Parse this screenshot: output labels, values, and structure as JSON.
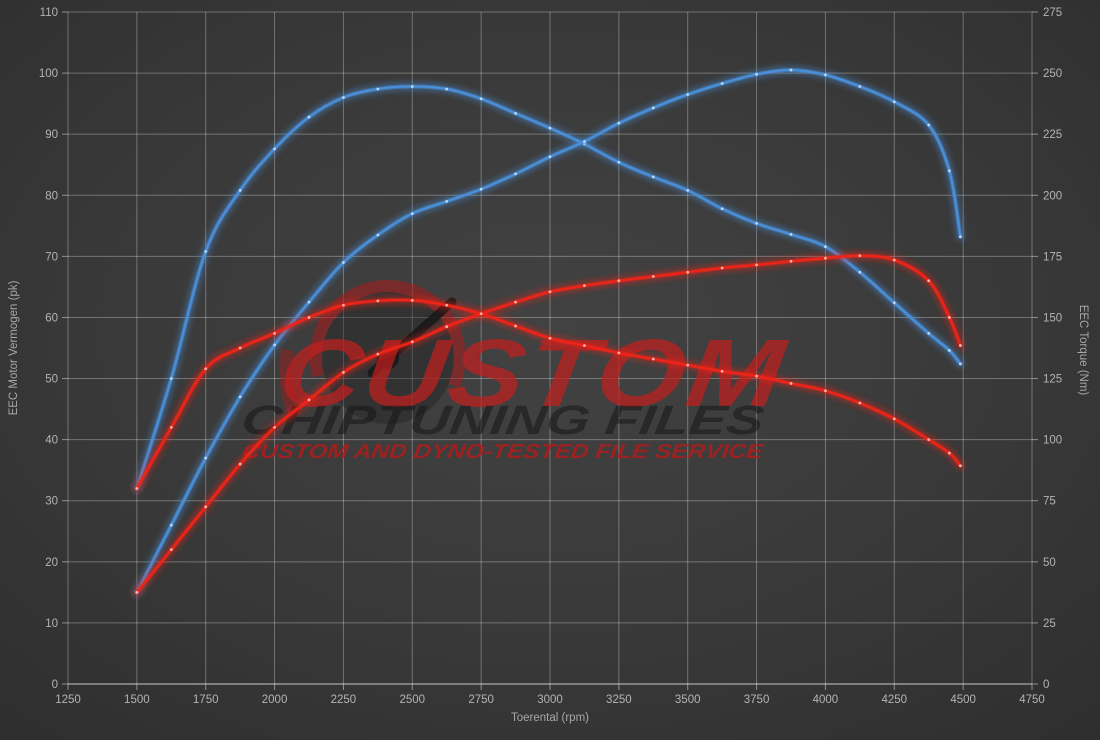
{
  "chart_data": {
    "type": "line",
    "title": "",
    "xlabel": "Toerental (rpm)",
    "ylabel_left": "EEC Motor Vermogen (pk)",
    "ylabel_right": "EEC Torque (Nm)",
    "x_range": [
      1250,
      4750
    ],
    "x_ticks": [
      1250,
      1500,
      1750,
      2000,
      2250,
      2500,
      2750,
      3000,
      3250,
      3500,
      3750,
      4000,
      4250,
      4500,
      4750
    ],
    "y_left": {
      "min": 0,
      "max": 110,
      "step": 10,
      "ticks": [
        0,
        10,
        20,
        30,
        40,
        50,
        60,
        70,
        80,
        90,
        100,
        110
      ]
    },
    "y_right": {
      "min": 0,
      "max": 275,
      "step": 25,
      "ticks": [
        0,
        25,
        50,
        75,
        100,
        125,
        150,
        175,
        200,
        225,
        250,
        275
      ]
    },
    "grid": true,
    "legend": "none",
    "x": [
      1500,
      1625,
      1750,
      1875,
      2000,
      2125,
      2250,
      2375,
      2500,
      2625,
      2750,
      2875,
      3000,
      3125,
      3250,
      3375,
      3500,
      3625,
      3750,
      3875,
      4000,
      4125,
      4250,
      4375,
      4450,
      4490
    ],
    "series": [
      {
        "name": "blue-torque",
        "axis": "right",
        "color": "#4a8fd9",
        "dot_color": "#d9e9ff",
        "values": [
          80,
          125,
          177,
          202,
          219,
          232,
          240,
          243.5,
          244.5,
          243.5,
          239.5,
          233.5,
          227.5,
          221,
          213.5,
          207.5,
          202,
          194.5,
          188.5,
          184,
          179,
          168.5,
          156,
          143.5,
          136.5,
          131
        ]
      },
      {
        "name": "blue-power",
        "axis": "left",
        "color": "#4a8fd9",
        "dot_color": "#d9e9ff",
        "values": [
          15,
          26,
          37,
          47,
          55.5,
          62.5,
          69,
          73.5,
          77,
          79,
          81,
          83.5,
          86.3,
          88.8,
          91.8,
          94.3,
          96.5,
          98.3,
          99.8,
          100.5,
          99.7,
          97.8,
          95.3,
          91.5,
          84,
          73.2
        ]
      },
      {
        "name": "red-torque",
        "axis": "right",
        "color": "#ef2418",
        "dot_color": "#ffd4ce",
        "values": [
          80,
          105,
          129,
          137.5,
          143.5,
          150,
          155,
          156.8,
          157,
          155,
          151.5,
          146.5,
          141.5,
          138.5,
          135.5,
          133,
          130.5,
          128,
          126,
          123,
          120,
          115,
          108.5,
          100,
          94.5,
          89.3
        ]
      },
      {
        "name": "red-power",
        "axis": "left",
        "color": "#ef2418",
        "dot_color": "#ffd4ce",
        "values": [
          15,
          22,
          29,
          36,
          42,
          46.5,
          51,
          54,
          56,
          58.5,
          60.6,
          62.5,
          64.2,
          65.2,
          66,
          66.7,
          67.4,
          68.1,
          68.6,
          69.2,
          69.7,
          70.1,
          69.4,
          66,
          60,
          55.4
        ]
      }
    ],
    "peaks": {
      "blue_power_pk": 100.5,
      "blue_torque_nm": 244.5,
      "red_power_pk": 70.1,
      "red_torque_nm": 157
    }
  },
  "watermark": {
    "title": "CUSTOM",
    "subtitle": "CHIPTUNING FILES",
    "tagline": "CUSTOM AND DYNO-TESTED FILE SERVICE"
  },
  "style": {
    "grid_color": "rgba(255,255,255,0.30)",
    "axis_color": "rgba(255,255,255,0.45)",
    "tick_label_color": "#b4b4b4"
  }
}
